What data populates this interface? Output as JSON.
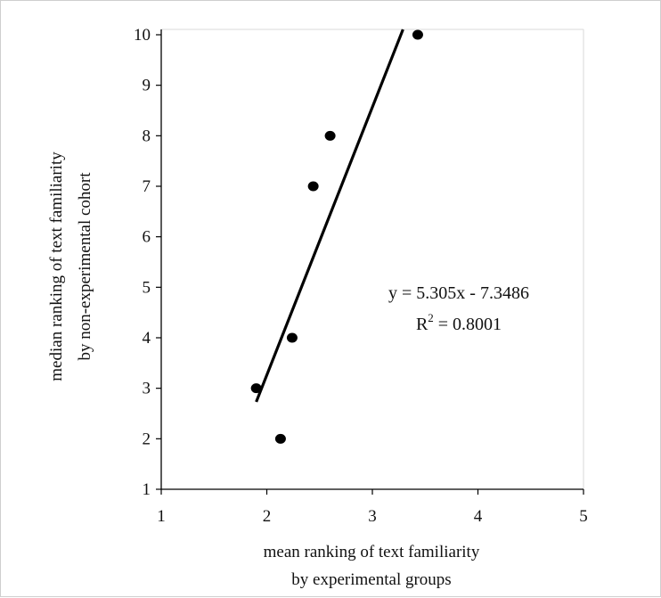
{
  "chart_data": {
    "type": "scatter",
    "title": "",
    "xlabel": [
      "mean ranking of text familiarity",
      "by experimental groups"
    ],
    "ylabel": [
      "median ranking of text familiarity",
      "by non-experimental cohort"
    ],
    "xlim": [
      1,
      5
    ],
    "ylim": [
      1,
      10
    ],
    "xticks": [
      "1",
      "2",
      "3",
      "4",
      "5"
    ],
    "yticks": [
      "1",
      "2",
      "3",
      "4",
      "5",
      "6",
      "7",
      "8",
      "9",
      "10"
    ],
    "grid": false,
    "legend": "none",
    "points": [
      {
        "x": 1.9,
        "y": 3
      },
      {
        "x": 2.13,
        "y": 2
      },
      {
        "x": 2.24,
        "y": 4
      },
      {
        "x": 2.44,
        "y": 7
      },
      {
        "x": 2.6,
        "y": 8
      },
      {
        "x": 3.43,
        "y": 10
      }
    ],
    "trendline": {
      "slope": 5.305,
      "intercept": -7.3486,
      "x_range": [
        1.9,
        3.29
      ],
      "equation": "y = 5.305x - 7.3486",
      "r2_label": "R",
      "r2_exp": "2",
      "r2_value": " = 0.8001"
    },
    "colors": {
      "marker": "#000000",
      "line": "#000000",
      "axis": "#000000"
    }
  }
}
